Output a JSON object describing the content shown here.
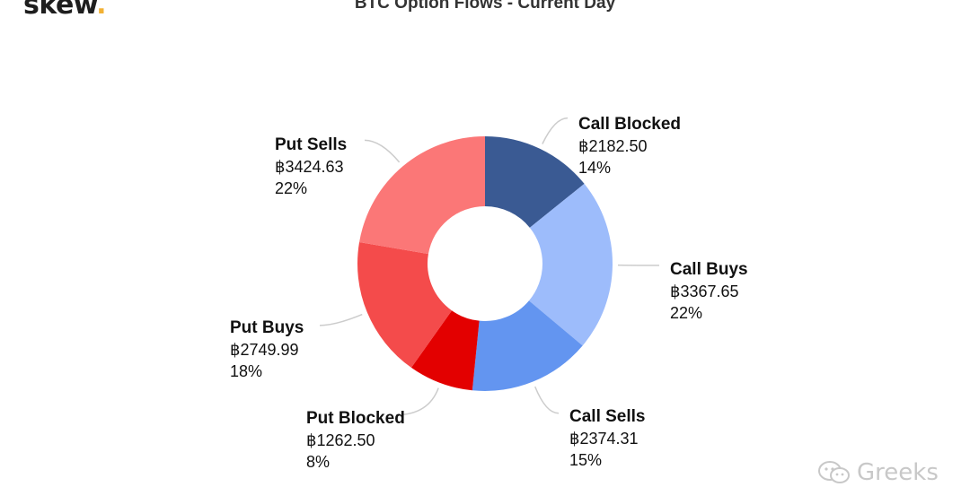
{
  "logo": {
    "text": "skew",
    "dot": ".",
    "dot_color": "#f2b134"
  },
  "chart_data": {
    "type": "pie",
    "variant": "donut",
    "title": "BTC Option Flows - Current Day",
    "currency_symbol": "฿",
    "slices": [
      {
        "name": "Call Blocked",
        "value": 2182.5,
        "value_label": "฿2182.50",
        "percent_label": "14%",
        "color": "#3a5a93"
      },
      {
        "name": "Call Buys",
        "value": 3367.65,
        "value_label": "฿3367.65",
        "percent_label": "22%",
        "color": "#9dbcfb"
      },
      {
        "name": "Call Sells",
        "value": 2374.31,
        "value_label": "฿2374.31",
        "percent_label": "15%",
        "color": "#6395f0"
      },
      {
        "name": "Put Blocked",
        "value": 1262.5,
        "value_label": "฿1262.50",
        "percent_label": "8%",
        "color": "#e30000"
      },
      {
        "name": "Put Buys",
        "value": 2749.99,
        "value_label": "฿2749.99",
        "percent_label": "18%",
        "color": "#f44b4b"
      },
      {
        "name": "Put Sells",
        "value": 3424.63,
        "value_label": "฿3424.63",
        "percent_label": "22%",
        "color": "#fb7777"
      }
    ]
  },
  "watermark": {
    "text": "Greeks",
    "icon": "wechat-icon"
  }
}
